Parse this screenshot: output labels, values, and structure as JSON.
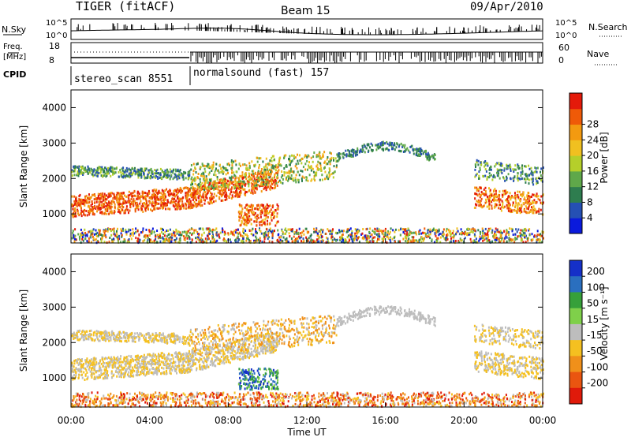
{
  "header": {
    "radar": "TIGER (fitACF)",
    "beam": "Beam 15",
    "date": "09/Apr/2010"
  },
  "top_panel": {
    "nsky_label": "N.Sky",
    "nsearch_label": "N.Search",
    "left_ticks": [
      "10^5",
      "10^0"
    ],
    "right_ticks": [
      "10^5",
      "10^0"
    ],
    "freq_label_line1": "Freq.",
    "freq_label_line2": "[MHz]",
    "freq_ticks": [
      "18",
      "8"
    ],
    "nave_label": "Nave",
    "nave_ticks": [
      "60",
      "0"
    ],
    "cpid_label": "CPID",
    "cpid_1": "stereo_scan 8551",
    "cpid_2": "normalsound (fast) 157"
  },
  "colors": {
    "power": [
      "#0a1adc",
      "#2550b4",
      "#2e7d4f",
      "#5fa84a",
      "#b5cf2a",
      "#f0c020",
      "#f39a10",
      "#ef5a08",
      "#e41a0a"
    ],
    "velocity": [
      "#1530c8",
      "#2a6fbf",
      "#36a03a",
      "#7fd04a",
      "#bdbdbd",
      "#f5c020",
      "#f0901a",
      "#ea5510",
      "#e01a0a"
    ]
  },
  "chart_data": [
    {
      "type": "heatmap",
      "name": "power",
      "ylabel": "Slant Range [km]",
      "xlim_hours": [
        0,
        24
      ],
      "ylim": [
        180,
        4500
      ],
      "yticks": [
        1000,
        2000,
        3000,
        4000
      ],
      "colorbar_label": "Power [dB]",
      "colorbar_ticks": [
        "4",
        "8",
        "12",
        "16",
        "20",
        "24",
        "28"
      ]
    },
    {
      "type": "heatmap",
      "name": "velocity",
      "xlabel": "Time UT",
      "ylabel": "Slant Range [km]",
      "xlim_hours": [
        0,
        24
      ],
      "ylim": [
        180,
        4500
      ],
      "yticks": [
        1000,
        2000,
        3000,
        4000
      ],
      "xticks": [
        "00:00",
        "04:00",
        "08:00",
        "12:00",
        "16:00",
        "20:00",
        "00:00"
      ],
      "colorbar_label": "Velocity [m s⁻¹]",
      "colorbar_ticks": [
        "200",
        "100",
        "50",
        "15",
        "-15",
        "-50",
        "-100",
        "-200"
      ]
    }
  ]
}
